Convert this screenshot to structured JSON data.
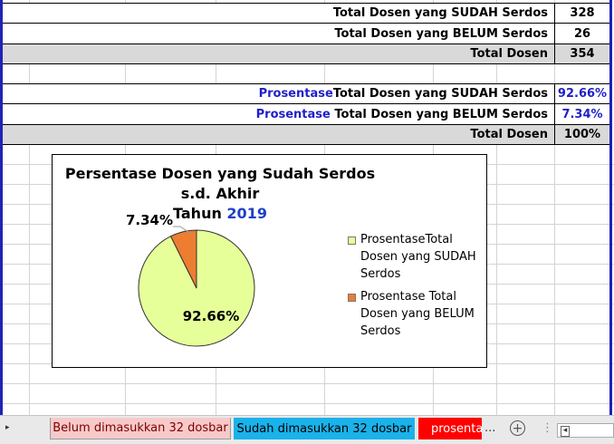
{
  "summary_rows": [
    {
      "label": "Total Dosen yang SUDAH Serdos",
      "value": "328"
    },
    {
      "label": "Total Dosen yang BELUM Serdos",
      "value": "26"
    },
    {
      "label": "Total Dosen",
      "value": "354"
    }
  ],
  "percent_rows": [
    {
      "prefix": "Prosentase",
      "label": "Total Dosen yang SUDAH Serdos",
      "value": "92.66%"
    },
    {
      "prefix": "Prosentase ",
      "label": "Total Dosen yang BELUM Serdos",
      "value": "7.34%"
    },
    {
      "prefix": "",
      "label": "Total Dosen",
      "value": "100%"
    }
  ],
  "chart": {
    "title_line1": "Persentase Dosen yang Sudah Serdos s.d. Akhir",
    "title_line2_prefix": "Tahun ",
    "title_year": "2019",
    "label_big": "92.66%",
    "label_small": "7.34%",
    "legend": [
      {
        "line1": "ProsentaseTotal",
        "line2": "Dosen yang SUDAH",
        "line3": "Serdos",
        "color": "#e6ff99"
      },
      {
        "line1": "Prosentase Total",
        "line2": "Dosen yang BELUM",
        "line3": "Serdos",
        "color": "#ed7d31"
      }
    ]
  },
  "chart_data": {
    "type": "pie",
    "title": "Persentase Dosen yang Sudah Serdos s.d. Akhir Tahun 2019",
    "categories": [
      "ProsentaseTotal Dosen yang SUDAH Serdos",
      "Prosentase Total Dosen yang BELUM Serdos"
    ],
    "values": [
      92.66,
      7.34
    ],
    "colors": [
      "#e6ff99",
      "#ed7d31"
    ],
    "legend_position": "right"
  },
  "tabs": [
    {
      "label": "Belum dimasukkan 32 dosbar",
      "bg": "#f8c9c9",
      "color": "#7a0000"
    },
    {
      "label": "Sudah dimasukkan 32 dosbar",
      "bg": "#1ab2ea",
      "color": "#000000"
    },
    {
      "label": "prosentas",
      "bg": "#ff0000",
      "color": "#ffffff"
    }
  ],
  "tabbar": {
    "more": "...",
    "add": "+",
    "sep": "⋮",
    "scroll_left": "◂",
    "nav": "▸"
  }
}
